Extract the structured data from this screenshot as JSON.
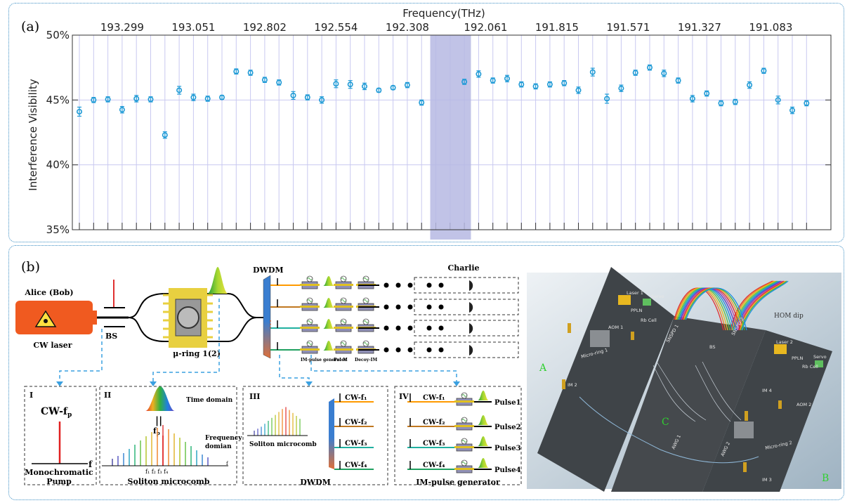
{
  "panel_a": {
    "label": "(a)",
    "chart_data": {
      "type": "scatter",
      "title": "",
      "xlabel": "Frequency(THz)",
      "ylabel": "Interference Visibility",
      "x_tick_labels": [
        "193.299",
        "193.051",
        "192.802",
        "192.554",
        "192.308",
        "192.061",
        "191.815",
        "191.571",
        "191.327",
        "191.083"
      ],
      "y_tick_labels": [
        "50%",
        "45%",
        "40%",
        "35%"
      ],
      "ylim": [
        35,
        50
      ],
      "grid": true,
      "channels": 52,
      "highlighted_channel": 25,
      "points": [
        {
          "ch": 0,
          "y": 44.1,
          "err": 0.35
        },
        {
          "ch": 1,
          "y": 45.0,
          "err": 0.2
        },
        {
          "ch": 2,
          "y": 45.05,
          "err": 0.2
        },
        {
          "ch": 3,
          "y": 44.25,
          "err": 0.25
        },
        {
          "ch": 4,
          "y": 45.1,
          "err": 0.25
        },
        {
          "ch": 5,
          "y": 45.05,
          "err": 0.2
        },
        {
          "ch": 6,
          "y": 42.3,
          "err": 0.25
        },
        {
          "ch": 7,
          "y": 45.75,
          "err": 0.3
        },
        {
          "ch": 8,
          "y": 45.2,
          "err": 0.25
        },
        {
          "ch": 9,
          "y": 45.1,
          "err": 0.2
        },
        {
          "ch": 10,
          "y": 45.2,
          "err": 0.15
        },
        {
          "ch": 11,
          "y": 47.2,
          "err": 0.2
        },
        {
          "ch": 12,
          "y": 47.1,
          "err": 0.2
        },
        {
          "ch": 13,
          "y": 46.55,
          "err": 0.2
        },
        {
          "ch": 14,
          "y": 46.35,
          "err": 0.2
        },
        {
          "ch": 15,
          "y": 45.35,
          "err": 0.3
        },
        {
          "ch": 16,
          "y": 45.2,
          "err": 0.2
        },
        {
          "ch": 17,
          "y": 45.0,
          "err": 0.25
        },
        {
          "ch": 18,
          "y": 46.25,
          "err": 0.3
        },
        {
          "ch": 19,
          "y": 46.2,
          "err": 0.3
        },
        {
          "ch": 20,
          "y": 46.05,
          "err": 0.25
        },
        {
          "ch": 21,
          "y": 45.75,
          "err": 0.15
        },
        {
          "ch": 22,
          "y": 45.95,
          "err": 0.15
        },
        {
          "ch": 23,
          "y": 46.15,
          "err": 0.2
        },
        {
          "ch": 24,
          "y": 44.8,
          "err": 0.2
        },
        {
          "ch": 27,
          "y": 46.4,
          "err": 0.2
        },
        {
          "ch": 28,
          "y": 47.0,
          "err": 0.25
        },
        {
          "ch": 29,
          "y": 46.5,
          "err": 0.2
        },
        {
          "ch": 30,
          "y": 46.65,
          "err": 0.25
        },
        {
          "ch": 31,
          "y": 46.2,
          "err": 0.2
        },
        {
          "ch": 32,
          "y": 46.05,
          "err": 0.2
        },
        {
          "ch": 33,
          "y": 46.2,
          "err": 0.2
        },
        {
          "ch": 34,
          "y": 46.3,
          "err": 0.2
        },
        {
          "ch": 35,
          "y": 45.75,
          "err": 0.25
        },
        {
          "ch": 36,
          "y": 47.15,
          "err": 0.3
        },
        {
          "ch": 37,
          "y": 45.1,
          "err": 0.35
        },
        {
          "ch": 38,
          "y": 45.9,
          "err": 0.25
        },
        {
          "ch": 39,
          "y": 47.1,
          "err": 0.2
        },
        {
          "ch": 40,
          "y": 47.5,
          "err": 0.2
        },
        {
          "ch": 41,
          "y": 47.05,
          "err": 0.25
        },
        {
          "ch": 42,
          "y": 46.5,
          "err": 0.2
        },
        {
          "ch": 43,
          "y": 45.1,
          "err": 0.25
        },
        {
          "ch": 44,
          "y": 45.5,
          "err": 0.2
        },
        {
          "ch": 45,
          "y": 44.75,
          "err": 0.2
        },
        {
          "ch": 46,
          "y": 44.85,
          "err": 0.2
        },
        {
          "ch": 47,
          "y": 46.15,
          "err": 0.25
        },
        {
          "ch": 48,
          "y": 47.25,
          "err": 0.2
        },
        {
          "ch": 49,
          "y": 45.0,
          "err": 0.3
        },
        {
          "ch": 50,
          "y": 44.2,
          "err": 0.25
        },
        {
          "ch": 51,
          "y": 44.75,
          "err": 0.2
        }
      ],
      "colors": {
        "marker": "#1f9ad6",
        "grid": "#c9c9f0",
        "highlight": "#b6b8e3",
        "axis": "#333333"
      }
    }
  },
  "panel_b": {
    "label": "(b)",
    "alice": "Alice (Bob)",
    "cw_laser": "CW laser",
    "bs": "BS",
    "ring": "μ-ring 1(2)",
    "dwdm": "DWDM",
    "charlie": "Charlie",
    "mod_labels": [
      "IM-pulse generator",
      "Pol-M",
      "Decoy-IM"
    ],
    "inset1": {
      "numeral": "I",
      "cw": "CW-f",
      "cw_sub": "p",
      "f": "f",
      "title1": "Monochromatic",
      "title2": "Pump"
    },
    "inset2": {
      "numeral": "II",
      "time_domain": "Time domain",
      "eq": "||",
      "fp": "f",
      "fp_sub": "p",
      "freq1": "Frequency",
      "freq2": "domian",
      "ticks": "f₁ f₂   f₃ f₄",
      "title": "Soliton microcomb",
      "axis_f": "f"
    },
    "inset3": {
      "numeral": "III",
      "soliton": "Soliton microcomb",
      "title": "DWDM",
      "cw_labels": [
        "CW-f₁",
        "CW-f₂",
        "CW-f₃",
        "CW-f₄"
      ]
    },
    "inset4": {
      "numeral": "IV",
      "title": "IM-pulse generator",
      "cw_labels": [
        "CW-f₁",
        "CW-f₂",
        "CW-f₃",
        "CW-f₄"
      ],
      "pulse_labels": [
        "Pulse1",
        "Pulse2",
        "Pulse3",
        "Pulse4"
      ]
    },
    "photo": {
      "boards": [
        "A",
        "B",
        "C"
      ],
      "labels_a": [
        "Laser 1",
        "Servo",
        "PPLN",
        "Rb Cell",
        "IM 1",
        "AOM 1",
        "Micro-ring 1",
        "IM 2"
      ],
      "labels_b": [
        "Laser 2",
        "Servo",
        "PPLN",
        "Rb Cell",
        "IM 4",
        "AOM 2",
        "Micro-ring 2",
        "IM 3"
      ],
      "labels_c": [
        "SNSPD 1",
        "BS",
        "SNSPD 2",
        "AWG 1",
        "AWG 2"
      ],
      "hom": "HOM dip"
    }
  }
}
